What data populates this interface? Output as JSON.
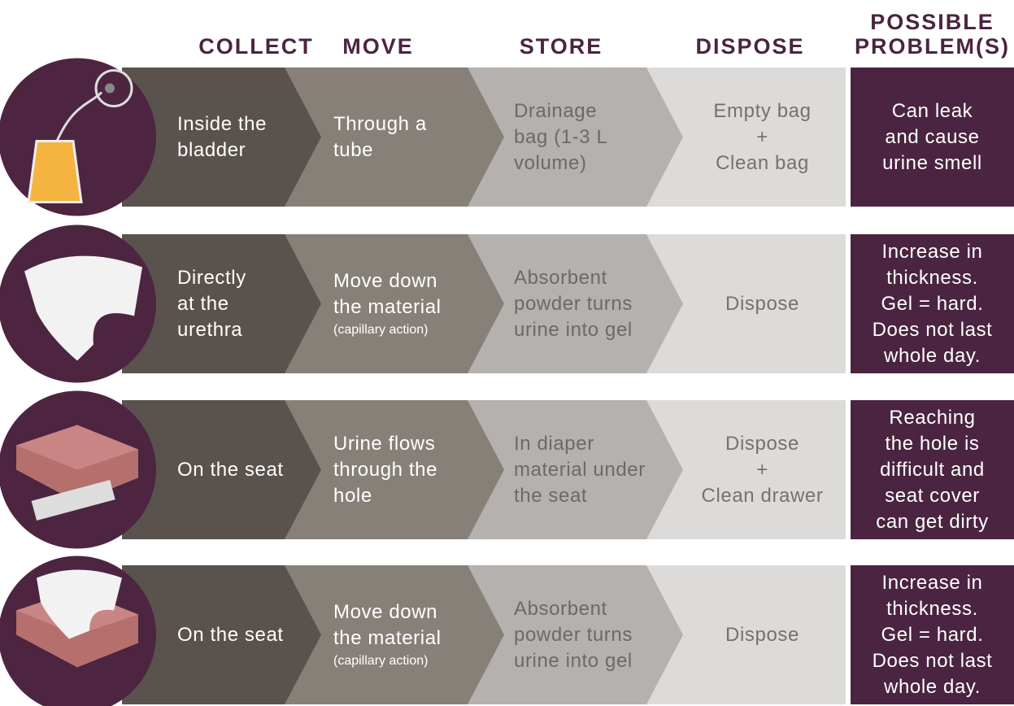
{
  "header": {
    "columns": [
      [
        "COLLECT"
      ],
      [
        "MOVE"
      ],
      [
        "STORE"
      ],
      [
        "DISPOSE"
      ],
      [
        "POSSIBLE",
        "PROBLEM(S)"
      ]
    ]
  },
  "rows": [
    {
      "collect": [
        "Inside the",
        "bladder"
      ],
      "move": [
        "Through a",
        "tube"
      ],
      "store": [
        "Drainage",
        "bag (1-3 L",
        "volume)"
      ],
      "dispose": [
        "Empty bag",
        "+",
        "Clean bag"
      ],
      "problem": [
        "Can leak",
        "and cause",
        "urine smell"
      ]
    },
    {
      "collect": [
        "Directly",
        "at the",
        "urethra"
      ],
      "move": [
        "Move down",
        "the material"
      ],
      "move_note": "(capillary action)",
      "store": [
        "Absorbent",
        "powder turns",
        "urine into gel"
      ],
      "dispose": [
        "Dispose"
      ],
      "problem": [
        "Increase in",
        "thickness.",
        "Gel = hard.",
        "Does not last",
        "whole day."
      ]
    },
    {
      "collect": [
        "On the seat"
      ],
      "move": [
        "Urine flows",
        "through the",
        "hole"
      ],
      "store": [
        "In diaper",
        "material under",
        "the seat"
      ],
      "dispose": [
        "Dispose",
        "+",
        "Clean drawer"
      ],
      "problem": [
        "Reaching",
        "the hole is",
        "difficult and",
        "seat cover",
        "can get dirty"
      ]
    },
    {
      "collect": [
        "On the seat"
      ],
      "move": [
        "Move down",
        "the material"
      ],
      "move_note": "(capillary action)",
      "store": [
        "Absorbent",
        "powder turns",
        "urine into gel"
      ],
      "dispose": [
        "Dispose"
      ],
      "problem": [
        "Increase in",
        "thickness.",
        "Gel = hard.",
        "Does not last",
        "whole day."
      ]
    }
  ]
}
